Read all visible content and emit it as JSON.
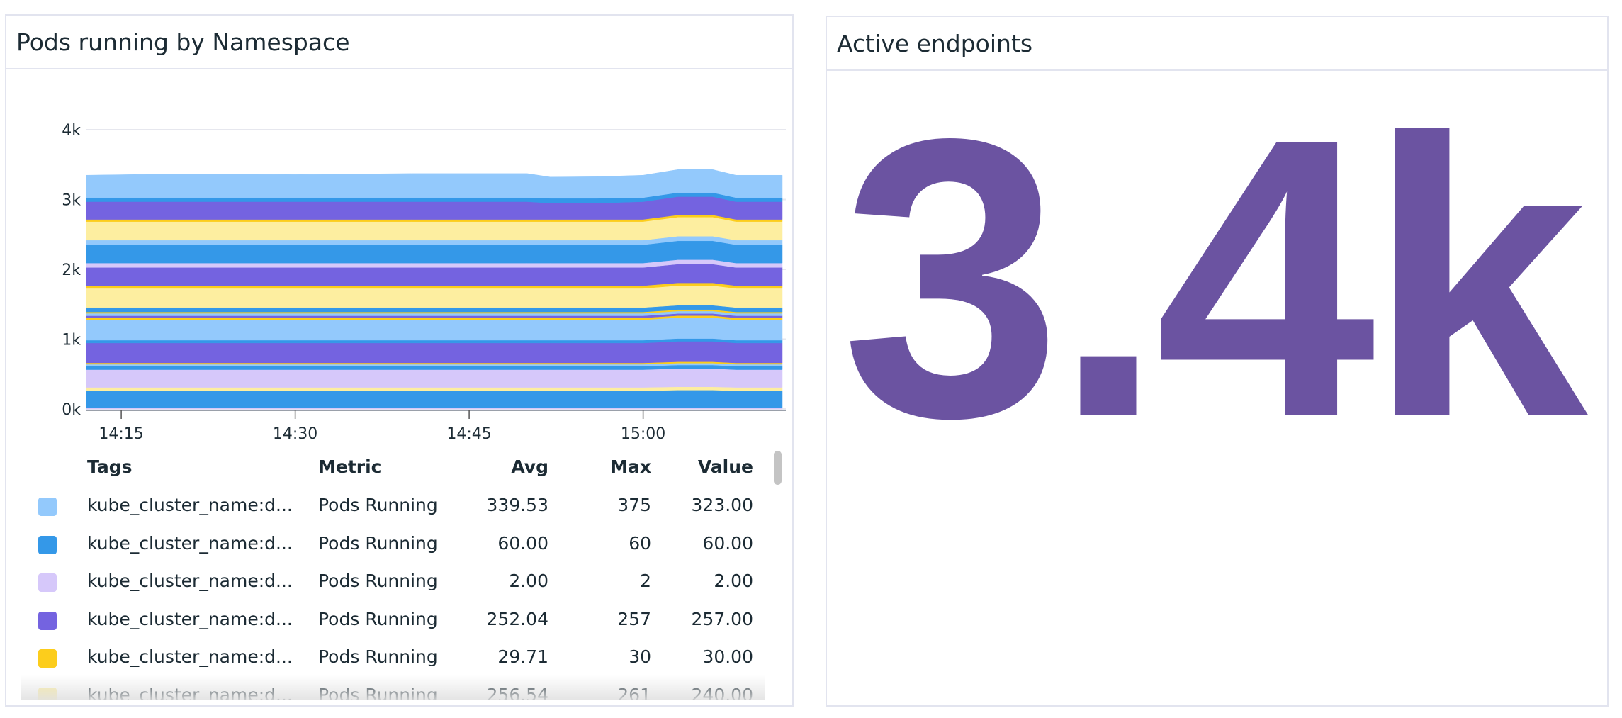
{
  "left_panel": {
    "title": "Pods running by Namespace",
    "table": {
      "headers": {
        "tags": "Tags",
        "metric": "Metric",
        "avg": "Avg",
        "max": "Max",
        "value": "Value"
      },
      "rows": [
        {
          "color": "#93c9fc",
          "tags": "kube_cluster_name:d...",
          "metric": "Pods Running",
          "avg": "339.53",
          "max": "375",
          "value": "323.00"
        },
        {
          "color": "#3498e8",
          "tags": "kube_cluster_name:d...",
          "metric": "Pods Running",
          "avg": "60.00",
          "max": "60",
          "value": "60.00"
        },
        {
          "color": "#d6c8fa",
          "tags": "kube_cluster_name:d...",
          "metric": "Pods Running",
          "avg": "2.00",
          "max": "2",
          "value": "2.00"
        },
        {
          "color": "#7463e0",
          "tags": "kube_cluster_name:d...",
          "metric": "Pods Running",
          "avg": "252.04",
          "max": "257",
          "value": "257.00"
        },
        {
          "color": "#fccd1c",
          "tags": "kube_cluster_name:d...",
          "metric": "Pods Running",
          "avg": "29.71",
          "max": "30",
          "value": "30.00"
        },
        {
          "color": "#fdeea0",
          "tags": "kube_cluster_name:d...",
          "metric": "Pods Running",
          "avg": "256.54",
          "max": "261",
          "value": "240.00"
        }
      ]
    }
  },
  "right_panel": {
    "title": "Active endpoints",
    "value": "3.4k",
    "value_color": "#6b53a1"
  },
  "chart_data": {
    "type": "area",
    "stacked": true,
    "grid": "horizontal",
    "ylim": [
      0,
      4000
    ],
    "yticks": [
      "0k",
      "1k",
      "2k",
      "3k",
      "4k"
    ],
    "ytick_values": [
      0,
      1000,
      2000,
      3000,
      4000
    ],
    "xticks": [
      "14:15",
      "14:30",
      "14:45",
      "15:00"
    ],
    "x": [
      "14:12",
      "14:20",
      "14:30",
      "14:40",
      "14:50",
      "14:52",
      "14:56",
      "15:00",
      "15:03",
      "15:06",
      "15:08",
      "15:12"
    ],
    "series": [
      {
        "color": "#d6c8fa",
        "values": [
          15,
          15,
          15,
          15,
          15,
          15,
          15,
          15,
          15,
          15,
          15,
          15
        ]
      },
      {
        "color": "#3498e8",
        "values": [
          247,
          247,
          247,
          247,
          247,
          247,
          247,
          247,
          255,
          255,
          247,
          247
        ]
      },
      {
        "color": "#fdeea0",
        "values": [
          47,
          47,
          47,
          47,
          47,
          47,
          47,
          47,
          47,
          47,
          47,
          47
        ]
      },
      {
        "color": "#d6c8fa",
        "values": [
          254,
          254,
          254,
          254,
          254,
          254,
          254,
          254,
          262,
          262,
          254,
          254
        ]
      },
      {
        "color": "#3498e8",
        "values": [
          50,
          50,
          50,
          50,
          50,
          50,
          50,
          50,
          50,
          50,
          50,
          50
        ]
      },
      {
        "color": "#93c9fc",
        "values": [
          27,
          27,
          27,
          27,
          27,
          27,
          27,
          27,
          27,
          27,
          27,
          27
        ]
      },
      {
        "color": "#fccd1c",
        "values": [
          20,
          20,
          20,
          20,
          20,
          20,
          20,
          20,
          20,
          20,
          20,
          20
        ]
      },
      {
        "color": "#7463e0",
        "values": [
          285,
          285,
          285,
          285,
          285,
          285,
          285,
          285,
          293,
          293,
          285,
          285
        ]
      },
      {
        "color": "#3498e8",
        "values": [
          40,
          40,
          40,
          40,
          40,
          40,
          40,
          40,
          40,
          40,
          40,
          40
        ]
      },
      {
        "color": "#93c9fc",
        "values": [
          292,
          292,
          292,
          292,
          292,
          292,
          292,
          292,
          300,
          300,
          292,
          292
        ]
      },
      {
        "color": "#fccd1c",
        "values": [
          28,
          28,
          28,
          28,
          28,
          28,
          28,
          28,
          28,
          28,
          28,
          28
        ]
      },
      {
        "color": "#7463e0",
        "values": [
          30,
          30,
          30,
          30,
          30,
          30,
          30,
          30,
          30,
          30,
          30,
          30
        ]
      },
      {
        "color": "#93c9fc",
        "values": [
          35,
          35,
          35,
          35,
          35,
          35,
          35,
          35,
          35,
          35,
          35,
          35
        ]
      },
      {
        "color": "#fccd1c",
        "values": [
          20,
          20,
          20,
          20,
          20,
          20,
          20,
          20,
          20,
          20,
          20,
          20
        ]
      },
      {
        "color": "#3498e8",
        "values": [
          63,
          63,
          63,
          63,
          63,
          63,
          63,
          63,
          63,
          63,
          63,
          63
        ]
      },
      {
        "color": "#fdeea0",
        "values": [
          274,
          274,
          274,
          274,
          274,
          274,
          274,
          274,
          282,
          282,
          274,
          274
        ]
      },
      {
        "color": "#fccd1c",
        "values": [
          39,
          39,
          39,
          39,
          39,
          39,
          39,
          39,
          39,
          39,
          39,
          39
        ]
      },
      {
        "color": "#7463e0",
        "values": [
          261,
          261,
          261,
          261,
          261,
          261,
          261,
          261,
          269,
          269,
          261,
          261
        ]
      },
      {
        "color": "#d6c8fa",
        "values": [
          63,
          63,
          63,
          63,
          63,
          63,
          63,
          63,
          63,
          63,
          63,
          63
        ]
      },
      {
        "color": "#3498e8",
        "values": [
          262,
          262,
          262,
          262,
          262,
          262,
          262,
          262,
          270,
          270,
          262,
          262
        ]
      },
      {
        "color": "#93c9fc",
        "values": [
          66,
          66,
          66,
          66,
          66,
          66,
          66,
          66,
          66,
          66,
          66,
          66
        ]
      },
      {
        "color": "#fdeea0",
        "values": [
          266,
          266,
          266,
          266,
          266,
          266,
          266,
          266,
          274,
          274,
          266,
          266
        ]
      },
      {
        "color": "#fccd1c",
        "values": [
          31,
          31,
          31,
          31,
          31,
          31,
          31,
          31,
          31,
          31,
          31,
          31
        ]
      },
      {
        "color": "#7463e0",
        "values": [
          254,
          254,
          254,
          254,
          254,
          234,
          234,
          254,
          262,
          262,
          254,
          254
        ]
      },
      {
        "color": "#3498e8",
        "values": [
          58,
          58,
          58,
          58,
          58,
          68,
          68,
          58,
          58,
          58,
          58,
          58
        ]
      },
      {
        "color": "#93c9fc",
        "values": [
          321,
          340,
          330,
          345,
          345,
          305,
          310,
          321,
          330,
          330,
          321,
          321
        ]
      }
    ]
  }
}
